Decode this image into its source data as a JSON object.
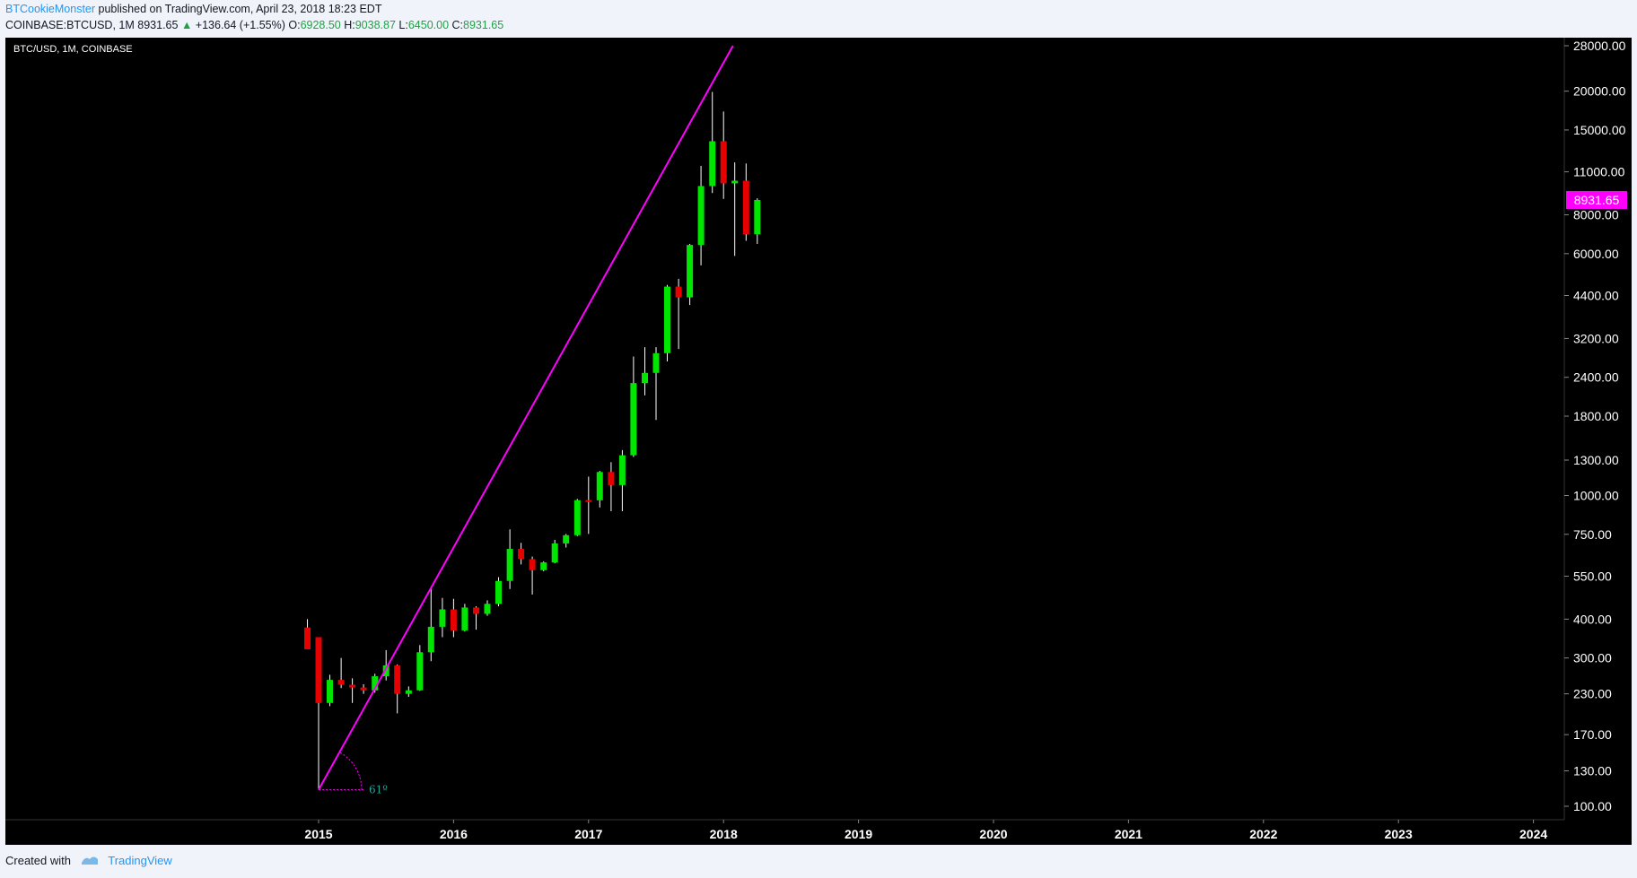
{
  "header": {
    "author": "BTCookieMonster",
    "published_text": " published on TradingView.com, April 23, 2018 18:23 EDT",
    "symbol_line_prefix": "COINBASE:BTCUSD, 1M",
    "last_price": "8931.65",
    "change": "+136.64 (+1.55%)",
    "open_label": "O:",
    "open_value": "6928.50",
    "high_label": "H:",
    "high_value": "9038.87",
    "low_label": "L:",
    "low_value": "6450.00",
    "close_label": "C:",
    "close_value": "8931.65"
  },
  "chart_title": "BTC/USD, 1M, COINBASE",
  "footer": {
    "created_with": "Created with",
    "brand": "TradingView"
  },
  "colors": {
    "background": "#000000",
    "up": "#00e600",
    "down": "#e60000",
    "wick": "#ffffff",
    "trendline": "#ff00ff",
    "price_tag": "#ff00ff",
    "axis_text": "#ffffff",
    "angle_label": "#26a69a"
  },
  "chart_data": {
    "type": "candlestick",
    "title": "BTC/USD, 1M, COINBASE",
    "scale": "log",
    "ylim": [
      95,
      28000
    ],
    "y_ticks": [
      "28000.00",
      "20000.00",
      "15000.00",
      "11000.00",
      "8000.00",
      "6000.00",
      "4400.00",
      "3200.00",
      "2400.00",
      "1800.00",
      "1300.00",
      "1000.00",
      "750.00",
      "550.00",
      "400.00",
      "300.00",
      "230.00",
      "170.00",
      "130.00",
      "100.00"
    ],
    "x_ticks": [
      "2015",
      "2016",
      "2017",
      "2018",
      "2019",
      "2020",
      "2021",
      "2022",
      "2023",
      "2024"
    ],
    "last_price_label": "8931.65",
    "angle_label": "61º",
    "trendline": {
      "start_year": 2015.0,
      "start_price": 113,
      "end_year": 2018.07,
      "end_price": 28000
    },
    "candles": [
      {
        "t": 2014.917,
        "o": 376,
        "h": 400,
        "l": 320,
        "c": 320
      },
      {
        "t": 2015.0,
        "o": 350,
        "h": 350,
        "l": 113,
        "c": 215
      },
      {
        "t": 2015.083,
        "o": 215,
        "h": 265,
        "l": 210,
        "c": 255
      },
      {
        "t": 2015.167,
        "o": 255,
        "h": 300,
        "l": 240,
        "c": 246
      },
      {
        "t": 2015.25,
        "o": 246,
        "h": 258,
        "l": 215,
        "c": 241
      },
      {
        "t": 2015.333,
        "o": 241,
        "h": 247,
        "l": 230,
        "c": 236
      },
      {
        "t": 2015.417,
        "o": 236,
        "h": 267,
        "l": 232,
        "c": 262
      },
      {
        "t": 2015.5,
        "o": 262,
        "h": 318,
        "l": 254,
        "c": 284
      },
      {
        "t": 2015.583,
        "o": 284,
        "h": 286,
        "l": 199,
        "c": 230
      },
      {
        "t": 2015.667,
        "o": 230,
        "h": 243,
        "l": 225,
        "c": 236
      },
      {
        "t": 2015.75,
        "o": 236,
        "h": 330,
        "l": 235,
        "c": 313
      },
      {
        "t": 2015.833,
        "o": 313,
        "h": 502,
        "l": 293,
        "c": 378
      },
      {
        "t": 2015.917,
        "o": 378,
        "h": 468,
        "l": 350,
        "c": 430
      },
      {
        "t": 2016.0,
        "o": 430,
        "h": 465,
        "l": 350,
        "c": 368
      },
      {
        "t": 2016.083,
        "o": 368,
        "h": 448,
        "l": 365,
        "c": 436
      },
      {
        "t": 2016.167,
        "o": 436,
        "h": 440,
        "l": 370,
        "c": 416
      },
      {
        "t": 2016.25,
        "o": 416,
        "h": 460,
        "l": 410,
        "c": 448
      },
      {
        "t": 2016.333,
        "o": 448,
        "h": 546,
        "l": 440,
        "c": 531
      },
      {
        "t": 2016.417,
        "o": 531,
        "h": 778,
        "l": 500,
        "c": 673
      },
      {
        "t": 2016.5,
        "o": 673,
        "h": 704,
        "l": 600,
        "c": 624
      },
      {
        "t": 2016.583,
        "o": 624,
        "h": 636,
        "l": 480,
        "c": 575
      },
      {
        "t": 2016.667,
        "o": 575,
        "h": 614,
        "l": 570,
        "c": 609
      },
      {
        "t": 2016.75,
        "o": 609,
        "h": 720,
        "l": 605,
        "c": 701
      },
      {
        "t": 2016.833,
        "o": 701,
        "h": 752,
        "l": 680,
        "c": 745
      },
      {
        "t": 2016.917,
        "o": 745,
        "h": 975,
        "l": 740,
        "c": 966
      },
      {
        "t": 2017.0,
        "o": 966,
        "h": 1150,
        "l": 752,
        "c": 965
      },
      {
        "t": 2017.083,
        "o": 965,
        "h": 1200,
        "l": 915,
        "c": 1190
      },
      {
        "t": 2017.167,
        "o": 1190,
        "h": 1280,
        "l": 890,
        "c": 1080
      },
      {
        "t": 2017.25,
        "o": 1080,
        "h": 1400,
        "l": 890,
        "c": 1347
      },
      {
        "t": 2017.333,
        "o": 1347,
        "h": 2800,
        "l": 1330,
        "c": 2300
      },
      {
        "t": 2017.417,
        "o": 2300,
        "h": 3000,
        "l": 2100,
        "c": 2480
      },
      {
        "t": 2017.5,
        "o": 2480,
        "h": 3000,
        "l": 1750,
        "c": 2870
      },
      {
        "t": 2017.583,
        "o": 2870,
        "h": 4760,
        "l": 2700,
        "c": 4700
      },
      {
        "t": 2017.667,
        "o": 4700,
        "h": 4980,
        "l": 2960,
        "c": 4340
      },
      {
        "t": 2017.75,
        "o": 4340,
        "h": 6450,
        "l": 4100,
        "c": 6400
      },
      {
        "t": 2017.833,
        "o": 6400,
        "h": 11500,
        "l": 5500,
        "c": 9900
      },
      {
        "t": 2017.917,
        "o": 9900,
        "h": 19890,
        "l": 9400,
        "c": 13800
      },
      {
        "t": 2018.0,
        "o": 13800,
        "h": 17200,
        "l": 9000,
        "c": 10100
      },
      {
        "t": 2018.083,
        "o": 10100,
        "h": 11800,
        "l": 5900,
        "c": 10300
      },
      {
        "t": 2018.167,
        "o": 10300,
        "h": 11700,
        "l": 6600,
        "c": 6928
      },
      {
        "t": 2018.25,
        "o": 6928.5,
        "h": 9038.87,
        "l": 6450,
        "c": 8931.65
      }
    ]
  }
}
